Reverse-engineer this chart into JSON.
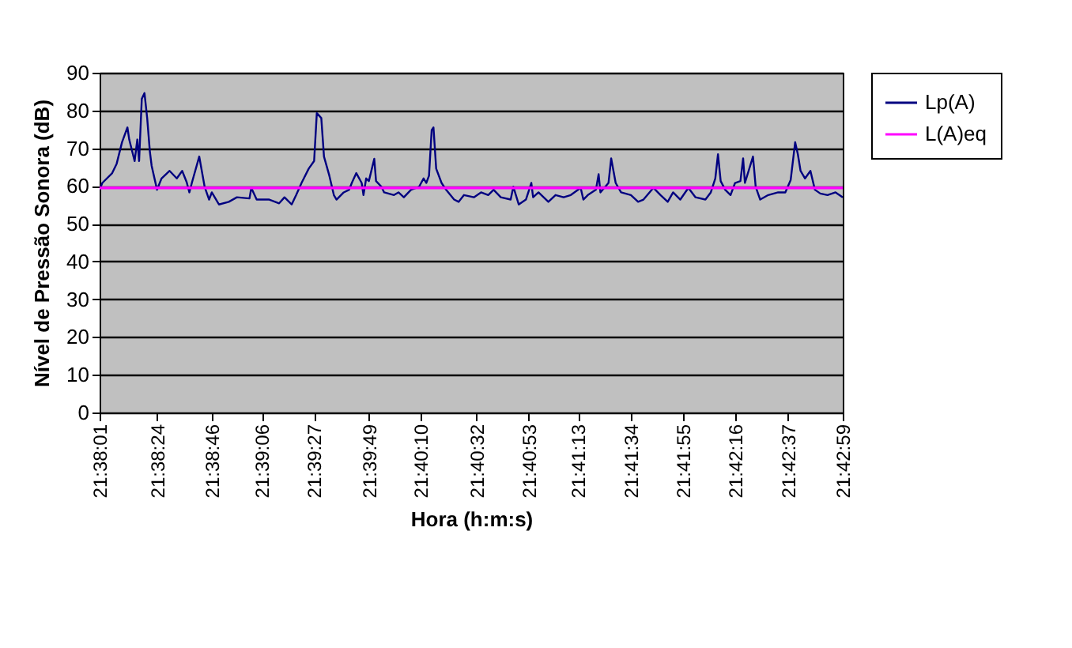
{
  "chart_data": {
    "type": "line",
    "xlabel": "Hora (h:m:s)",
    "ylabel": "Nível de Pressão Sonora (dB)",
    "x": [
      21.6336,
      21.6339,
      21.635,
      21.6355,
      21.6361,
      21.6367,
      21.6369,
      21.6375,
      21.6378,
      21.638,
      21.6383,
      21.6386,
      21.6389,
      21.6392,
      21.6394,
      21.64,
      21.6405,
      21.6414,
      21.6422,
      21.6428,
      21.6433,
      21.6436,
      21.6439,
      21.6447,
      21.6453,
      21.6458,
      21.6461,
      21.6469,
      21.648,
      21.6489,
      21.6503,
      21.6505,
      21.6511,
      21.6525,
      21.6536,
      21.6542,
      21.655,
      21.6555,
      21.6561,
      21.6569,
      21.6575,
      21.6578,
      21.6583,
      21.6586,
      21.6592,
      21.6597,
      21.66,
      21.6608,
      21.6614,
      21.6617,
      21.6622,
      21.6628,
      21.663,
      21.6633,
      21.6636,
      21.6642,
      21.6644,
      21.665,
      21.6653,
      21.6664,
      21.6669,
      21.6675,
      21.6683,
      21.6692,
      21.6697,
      21.67,
      21.6703,
      21.6706,
      21.6708,
      21.6711,
      21.6717,
      21.6722,
      21.6731,
      21.6736,
      21.6742,
      21.6753,
      21.6761,
      21.6769,
      21.6775,
      21.6783,
      21.6794,
      21.6797,
      21.6803,
      21.6811,
      21.6817,
      21.6819,
      21.6825,
      21.6836,
      21.6844,
      21.6853,
      21.6861,
      21.6872,
      21.6875,
      21.688,
      21.6889,
      21.6892,
      21.6894,
      21.6903,
      21.6906,
      21.6911,
      21.6917,
      21.6928,
      21.6936,
      21.6942,
      21.6953,
      21.6961,
      21.6969,
      21.6975,
      21.6983,
      21.6992,
      21.7,
      21.7011,
      21.7017,
      21.7022,
      21.7025,
      21.7028,
      21.7033,
      21.7039,
      21.7044,
      21.705,
      21.7053,
      21.7055,
      21.7064,
      21.7067,
      21.7072,
      21.7081,
      21.7092,
      21.71,
      21.7106,
      21.7111,
      21.7114,
      21.7117,
      21.7122,
      21.7128,
      21.7133,
      21.7139,
      21.7147,
      21.7156,
      21.7164
    ],
    "series": [
      {
        "name": "Lp(A)",
        "color": "#000080",
        "values": [
          59,
          60.8,
          63.4,
          65.9,
          71.6,
          75.5,
          72.3,
          66.6,
          72.3,
          66.6,
          83.1,
          84.6,
          78,
          69.1,
          65.3,
          59,
          62,
          64,
          62,
          64,
          61,
          58.3,
          61,
          67.8,
          59.8,
          56.4,
          58.3,
          55.1,
          55.8,
          57,
          56.7,
          59.5,
          56.4,
          56.4,
          55.4,
          57,
          55.1,
          57.6,
          60.8,
          64.6,
          66.6,
          79.3,
          78,
          67.8,
          62.7,
          57.6,
          56.4,
          58.3,
          59,
          60.8,
          63.4,
          60.8,
          57.6,
          62,
          61.3,
          67.2,
          61.3,
          59.8,
          58.3,
          57.6,
          58.3,
          57,
          59,
          59.8,
          62,
          60.8,
          62.7,
          74.8,
          75.5,
          64.6,
          60.8,
          59,
          56.4,
          55.8,
          57.6,
          57,
          58.3,
          57.6,
          59,
          57,
          56.4,
          59.8,
          55.1,
          56.4,
          60.8,
          57,
          58.3,
          55.8,
          57.6,
          57,
          57.6,
          59.5,
          56.4,
          57.6,
          59,
          63.1,
          58.3,
          60.8,
          67.3,
          60.8,
          58.3,
          57.6,
          55.8,
          56.4,
          59.5,
          57.6,
          55.8,
          58.3,
          56.4,
          59.5,
          57,
          56.4,
          58.3,
          62,
          68.4,
          61.3,
          59,
          57.6,
          60.8,
          61.3,
          67.3,
          60.8,
          67.8,
          59.8,
          56.4,
          57.6,
          58.3,
          58.3,
          61.6,
          71.6,
          68.4,
          64,
          62,
          64,
          59,
          58,
          57.6,
          58.3,
          57
        ]
      },
      {
        "name": "L(A)eq",
        "color": "#ff00ff",
        "x": [
          21.6336,
          21.7164
        ],
        "values": [
          59.5,
          59.5
        ]
      }
    ],
    "xlim": [
      21.6336,
      21.7164
    ],
    "xticks": [
      {
        "value": 21.6336,
        "label": "21:38:01"
      },
      {
        "value": 21.64,
        "label": "21:38:24"
      },
      {
        "value": 21.6461,
        "label": "21:38:46"
      },
      {
        "value": 21.6517,
        "label": "21:39:06"
      },
      {
        "value": 21.6575,
        "label": "21:39:27"
      },
      {
        "value": 21.6636,
        "label": "21:39:49"
      },
      {
        "value": 21.6694,
        "label": "21:40:10"
      },
      {
        "value": 21.6756,
        "label": "21:40:32"
      },
      {
        "value": 21.6814,
        "label": "21:40:53"
      },
      {
        "value": 21.6869,
        "label": "21:41:13"
      },
      {
        "value": 21.6928,
        "label": "21:41:34"
      },
      {
        "value": 21.6986,
        "label": "21:41:55"
      },
      {
        "value": 21.7044,
        "label": "21:42:16"
      },
      {
        "value": 21.7103,
        "label": "21:42:37"
      },
      {
        "value": 21.7164,
        "label": "21:42:59"
      }
    ],
    "ylim": [
      0,
      90
    ],
    "yticks": [
      0,
      10,
      20,
      30,
      40,
      50,
      60,
      70,
      80,
      90
    ],
    "grid": "y",
    "legend": "right"
  }
}
